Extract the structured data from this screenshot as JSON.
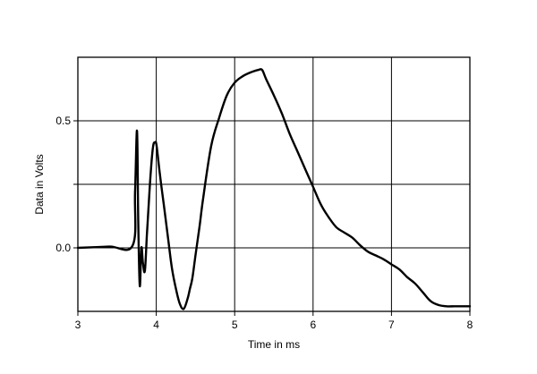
{
  "chart_data": {
    "type": "line",
    "title": "",
    "xlabel": "Time in ms",
    "ylabel": "Data in Volts",
    "xlim": [
      3,
      8
    ],
    "ylim": [
      -0.25,
      0.75
    ],
    "grid": true,
    "legend": "none",
    "x_ticks": [
      3,
      4,
      5,
      6,
      7,
      8
    ],
    "x_tick_labels": [
      "3",
      "4",
      "5",
      "6",
      "7",
      "8"
    ],
    "y_ticks": [
      0.0,
      0.25,
      0.5
    ],
    "y_tick_labels": [
      "0.0",
      "",
      "0.5"
    ],
    "colors": {
      "line": "#000000",
      "grid": "#000000",
      "background": "#ffffff"
    },
    "series": [
      {
        "x": [
          3.0,
          3.4,
          3.7,
          3.73,
          3.755,
          3.77,
          3.79,
          3.81,
          3.83,
          3.855,
          3.88,
          3.9,
          3.93,
          3.96,
          3.985,
          4.0,
          4.02,
          4.05,
          4.1,
          4.15,
          4.2,
          4.25,
          4.3,
          4.35,
          4.4,
          4.43,
          4.46,
          4.5,
          4.55,
          4.6,
          4.7,
          4.8,
          4.9,
          5.0,
          5.1,
          5.2,
          5.3,
          5.35,
          5.4,
          5.5,
          5.6,
          5.7,
          5.8,
          5.9,
          6.0,
          6.1,
          6.2,
          6.3,
          6.4,
          6.5,
          6.6,
          6.7,
          6.8,
          6.9,
          7.0,
          7.1,
          7.2,
          7.3,
          7.4,
          7.5,
          7.6,
          7.7,
          7.8,
          7.9,
          8.0
        ],
        "y": [
          0.0,
          0.005,
          0.01,
          0.22,
          0.46,
          0.1,
          -0.15,
          0.0,
          -0.06,
          -0.09,
          0.05,
          0.15,
          0.3,
          0.4,
          0.415,
          0.41,
          0.36,
          0.28,
          0.16,
          0.04,
          -0.08,
          -0.16,
          -0.22,
          -0.24,
          -0.2,
          -0.16,
          -0.12,
          -0.03,
          0.08,
          0.2,
          0.4,
          0.51,
          0.6,
          0.65,
          0.675,
          0.69,
          0.7,
          0.7,
          0.665,
          0.6,
          0.53,
          0.45,
          0.38,
          0.31,
          0.24,
          0.17,
          0.12,
          0.08,
          0.06,
          0.04,
          0.01,
          -0.015,
          -0.03,
          -0.045,
          -0.065,
          -0.085,
          -0.115,
          -0.14,
          -0.175,
          -0.21,
          -0.225,
          -0.23,
          -0.23,
          -0.23,
          -0.23
        ]
      }
    ]
  }
}
